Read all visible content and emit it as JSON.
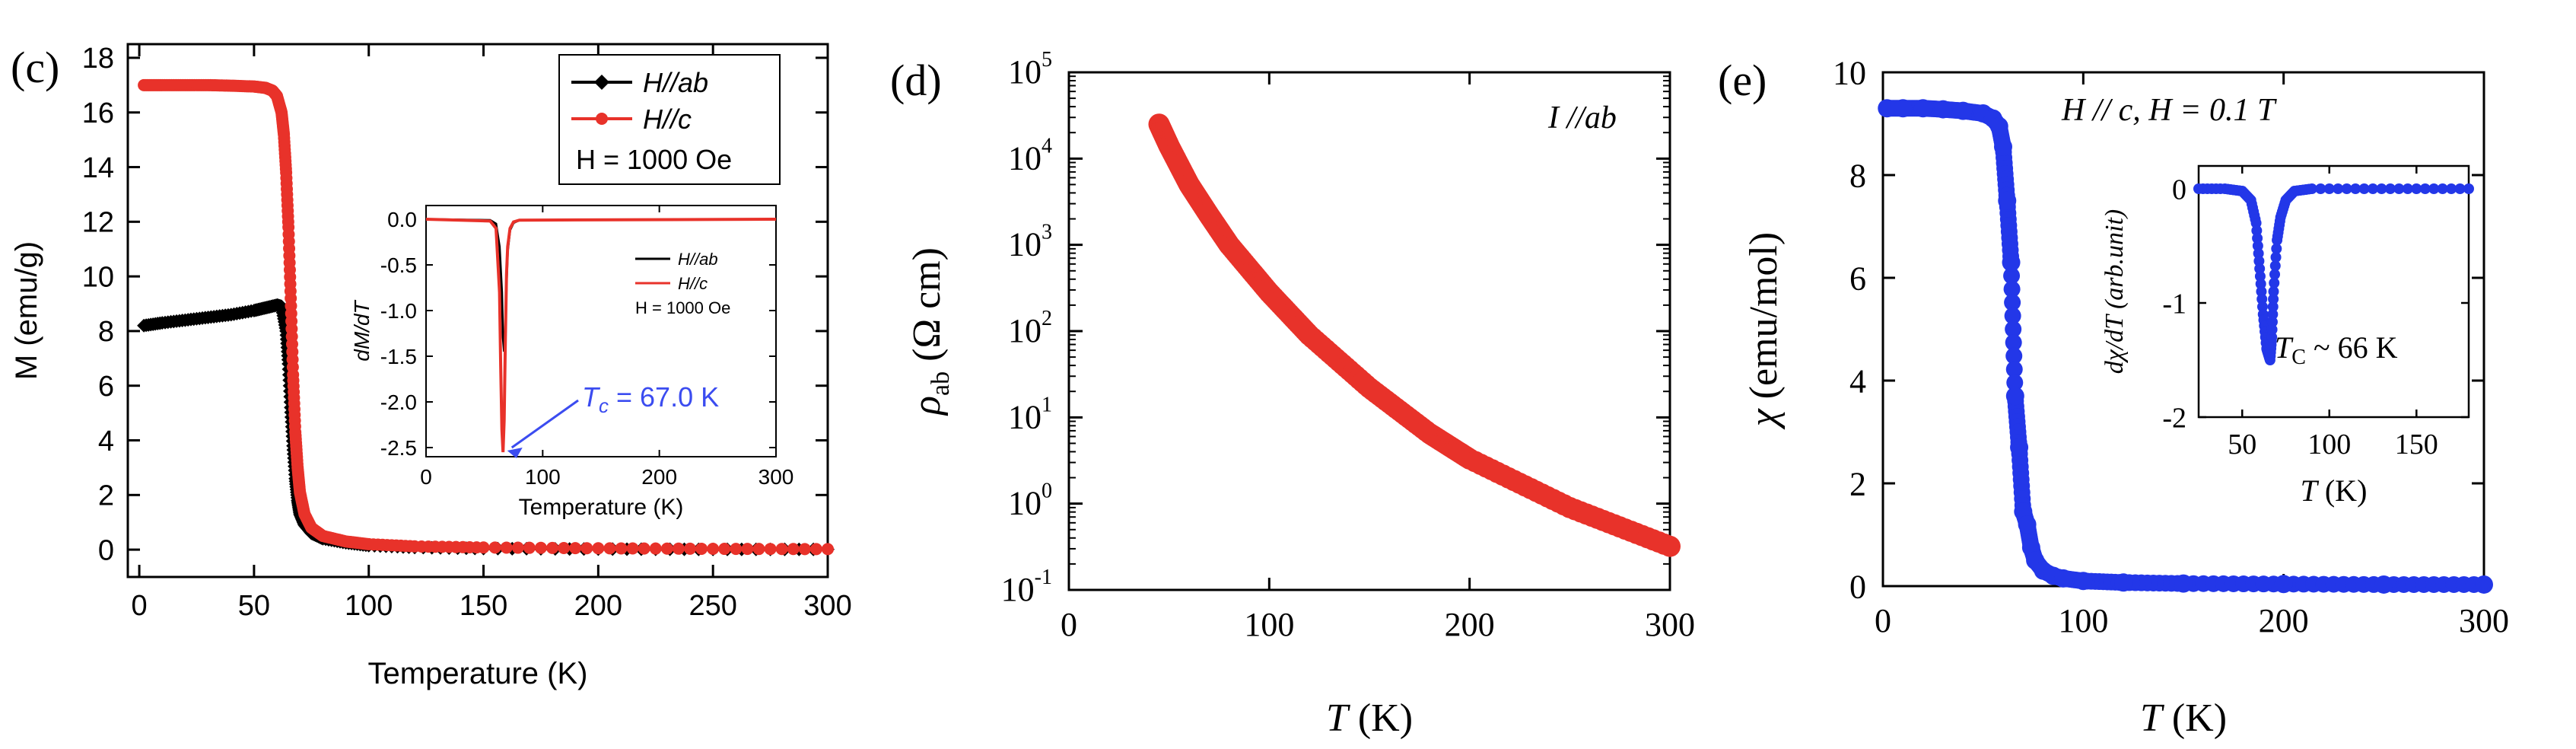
{
  "chart_data": [
    {
      "panel": "(c)",
      "type": "scatter",
      "xlabel": "Temperature (K)",
      "ylabel": "M (emu/g)",
      "xlim": [
        -5,
        300
      ],
      "ylim": [
        -1,
        18.5
      ],
      "xticks": [
        0,
        50,
        100,
        150,
        200,
        250,
        300
      ],
      "yticks": [
        0,
        2,
        4,
        6,
        8,
        10,
        12,
        14,
        16,
        18
      ],
      "xtick_labels": [
        "0",
        "50",
        "100",
        "150",
        "200",
        "250",
        "300"
      ],
      "ytick_labels": [
        "0",
        "2",
        "4",
        "6",
        "8",
        "10",
        "12",
        "14",
        "16",
        "18"
      ],
      "legend_position": "top-right",
      "legend_note": "H = 1000 Oe",
      "series": [
        {
          "name": "H//ab",
          "color": "#000000",
          "marker": "diamond",
          "x": [
            2,
            10,
            20,
            30,
            40,
            50,
            55,
            60,
            62,
            64,
            65,
            66,
            67,
            68,
            69,
            70,
            72,
            75,
            80,
            90,
            100,
            120,
            150,
            200,
            250,
            300
          ],
          "y": [
            8.2,
            8.3,
            8.4,
            8.5,
            8.6,
            8.75,
            8.85,
            8.95,
            8.9,
            8.0,
            6.8,
            5.2,
            3.8,
            2.6,
            1.8,
            1.3,
            0.9,
            0.6,
            0.4,
            0.25,
            0.15,
            0.08,
            0.04,
            0.02,
            0.01,
            0.01
          ]
        },
        {
          "name": "H//c",
          "color": "#e8322a",
          "marker": "circle",
          "x": [
            2,
            10,
            20,
            30,
            40,
            50,
            55,
            58,
            60,
            62,
            63,
            64,
            65,
            66,
            67,
            68,
            69,
            70,
            72,
            75,
            80,
            90,
            100,
            120,
            150,
            200,
            250,
            300
          ],
          "y": [
            17.0,
            17.0,
            17.0,
            17.0,
            16.98,
            16.95,
            16.9,
            16.8,
            16.6,
            16.0,
            15.2,
            13.8,
            11.8,
            9.2,
            6.4,
            4.3,
            3.0,
            2.1,
            1.3,
            0.8,
            0.5,
            0.3,
            0.2,
            0.12,
            0.08,
            0.05,
            0.03,
            0.02
          ]
        }
      ],
      "inset": {
        "type": "line",
        "xlabel": "Temperature (K)",
        "ylabel": "dM/dT",
        "xlim": [
          0,
          300
        ],
        "ylim": [
          -2.6,
          0.15
        ],
        "xticks": [
          0,
          100,
          200,
          300
        ],
        "yticks": [
          0.0,
          -0.5,
          -1.0,
          -1.5,
          -2.0,
          -2.5
        ],
        "xtick_labels": [
          "0",
          "100",
          "200",
          "300"
        ],
        "ytick_labels": [
          "0.0",
          "-0.5",
          "-1.0",
          "-1.5",
          "-2.0",
          "-2.5"
        ],
        "legend_position": "right",
        "legend_note": "H = 1000 Oe",
        "series": [
          {
            "name": "H//ab",
            "color": "#000000",
            "x": [
              0,
              55,
              60,
              63,
              65,
              66,
              67,
              68,
              69,
              70,
              72,
              75,
              80,
              300
            ],
            "y": [
              0.0,
              -0.01,
              -0.05,
              -0.3,
              -0.8,
              -1.3,
              -1.45,
              -1.2,
              -0.7,
              -0.35,
              -0.12,
              -0.04,
              -0.01,
              0.0
            ]
          },
          {
            "name": "H//c",
            "color": "#e8322a",
            "x": [
              0,
              55,
              60,
              63,
              64,
              65,
              66,
              67,
              68,
              69,
              70,
              72,
              75,
              80,
              300
            ],
            "y": [
              0.0,
              -0.02,
              -0.1,
              -0.8,
              -1.6,
              -2.3,
              -2.55,
              -2.2,
              -1.3,
              -0.6,
              -0.3,
              -0.1,
              -0.03,
              -0.01,
              0.0
            ]
          }
        ],
        "annotation": {
          "text_prefix": "T",
          "text_sub": "c",
          "text_suffix": " = 67.0 K",
          "x": 67,
          "y": -2.55,
          "color": "#3b4cf0"
        }
      }
    },
    {
      "panel": "(d)",
      "type": "scatter",
      "xlabel_italic": "T",
      "xlabel_rest": " (K)",
      "ylabel_symbol": "ρ",
      "ylabel_sub": "ab",
      "ylabel_rest": " (Ω cm)",
      "xlim": [
        0,
        300
      ],
      "yscale": "log",
      "ylim": [
        0.1,
        100000
      ],
      "xticks": [
        0,
        100,
        200,
        300
      ],
      "xtick_labels": [
        "0",
        "100",
        "200",
        "300"
      ],
      "ytick_exponents": [
        -1,
        0,
        1,
        2,
        3,
        4,
        5
      ],
      "ytick_base": "10",
      "annotation": "I //ab",
      "series": [
        {
          "name": "",
          "color": "#e8322a",
          "x": [
            45,
            50,
            60,
            70,
            80,
            100,
            120,
            150,
            180,
            200,
            250,
            300
          ],
          "y": [
            25000,
            14000,
            5000,
            2200,
            1000,
            280,
            90,
            22,
            6.5,
            3.3,
            0.9,
            0.32
          ]
        }
      ]
    },
    {
      "panel": "(e)",
      "type": "line",
      "xlabel_italic": "T",
      "xlabel_rest": " (K)",
      "ylabel_symbol": "χ",
      "ylabel_rest": " (emu/mol)",
      "xlim": [
        0,
        300
      ],
      "ylim": [
        0,
        10
      ],
      "xticks": [
        0,
        100,
        200,
        300
      ],
      "yticks": [
        0,
        2,
        4,
        6,
        8,
        10
      ],
      "xtick_labels": [
        "0",
        "100",
        "200",
        "300"
      ],
      "ytick_labels": [
        "0",
        "2",
        "4",
        "6",
        "8",
        "10"
      ],
      "annotation": "H // c, H = 0.1 T",
      "series": [
        {
          "name": "",
          "color": "#2337e8",
          "marker": "circle",
          "x": [
            2,
            10,
            20,
            30,
            40,
            50,
            55,
            58,
            60,
            62,
            64,
            66,
            68,
            70,
            72,
            74,
            76,
            80,
            85,
            90,
            100,
            120,
            150,
            200,
            250,
            300
          ],
          "y": [
            9.3,
            9.3,
            9.3,
            9.28,
            9.25,
            9.2,
            9.1,
            8.95,
            8.55,
            7.5,
            6.3,
            3.7,
            2.7,
            1.45,
            1.2,
            0.75,
            0.5,
            0.3,
            0.2,
            0.15,
            0.1,
            0.07,
            0.05,
            0.04,
            0.03,
            0.03
          ]
        }
      ],
      "inset": {
        "type": "line",
        "xlabel_italic": "T",
        "xlabel_rest": " (K)",
        "ylabel_text": "dχ/dT (arb.unit)",
        "xlim": [
          25,
          180
        ],
        "ylim": [
          -2,
          0.2
        ],
        "xticks": [
          50,
          100,
          150
        ],
        "yticks": [
          0,
          -1,
          -2
        ],
        "xtick_labels": [
          "50",
          "100",
          "150"
        ],
        "ytick_labels": [
          "0",
          "-1",
          "-2"
        ],
        "annotation_prefix": "T",
        "annotation_sub": "C",
        "annotation_suffix": " ~ 66 K",
        "series": [
          {
            "name": "",
            "color": "#2337e8",
            "x": [
              25,
              40,
              50,
              55,
              58,
              60,
              62,
              64,
              65,
              66,
              67,
              68,
              70,
              72,
              75,
              80,
              90,
              120,
              150,
              180
            ],
            "y": [
              0.0,
              0.0,
              -0.02,
              -0.1,
              -0.3,
              -0.7,
              -1.1,
              -1.4,
              -1.45,
              -1.5,
              -1.3,
              -0.9,
              -0.45,
              -0.25,
              -0.1,
              -0.02,
              0.0,
              0.0,
              0.0,
              0.0
            ]
          }
        ]
      }
    }
  ]
}
